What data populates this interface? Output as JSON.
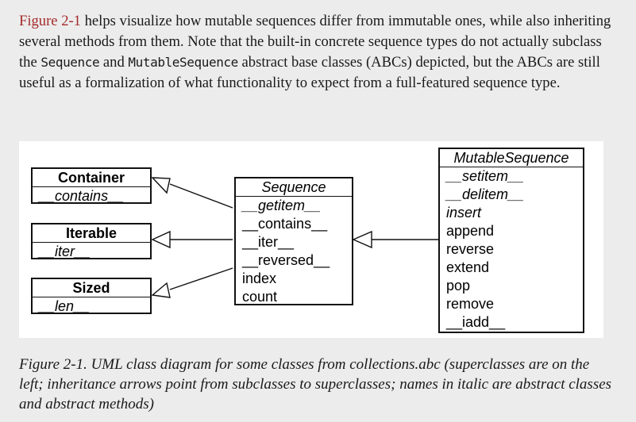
{
  "paragraph": {
    "ref": "Figure 2-1",
    "t1": " helps visualize how mutable sequences differ from immutable ones, while also inheriting several methods from them. Note that the built-in concrete sequence types do not actually subclass the ",
    "code1": "Sequence",
    "t2": " and ",
    "code2": "MutableSequence",
    "t3": " abstract base classes (ABCs) depicted, but the ABCs are still useful as a formalization of what functionality to expect from a full-featured sequence type."
  },
  "diagram": {
    "container": {
      "name": "Container",
      "members": [
        "__contains__"
      ]
    },
    "iterable": {
      "name": "Iterable",
      "members": [
        "__iter__"
      ]
    },
    "sized": {
      "name": "Sized",
      "members": [
        "__len__"
      ]
    },
    "sequence": {
      "name": "Sequence",
      "members": [
        "__getitem__",
        "__contains__",
        "__iter__",
        "__reversed__",
        "index",
        "count"
      ]
    },
    "mutable_sequence": {
      "name": "MutableSequence",
      "members": [
        "__setitem__",
        "__delitem__",
        "insert",
        "append",
        "reverse",
        "extend",
        "pop",
        "remove",
        "__iadd__"
      ]
    }
  },
  "caption": "Figure 2-1. UML class diagram for some classes from collections.abc (superclasses are on the left; inheritance arrows point from subclasses to superclasses; names in italic are abstract classes and abstract methods)"
}
